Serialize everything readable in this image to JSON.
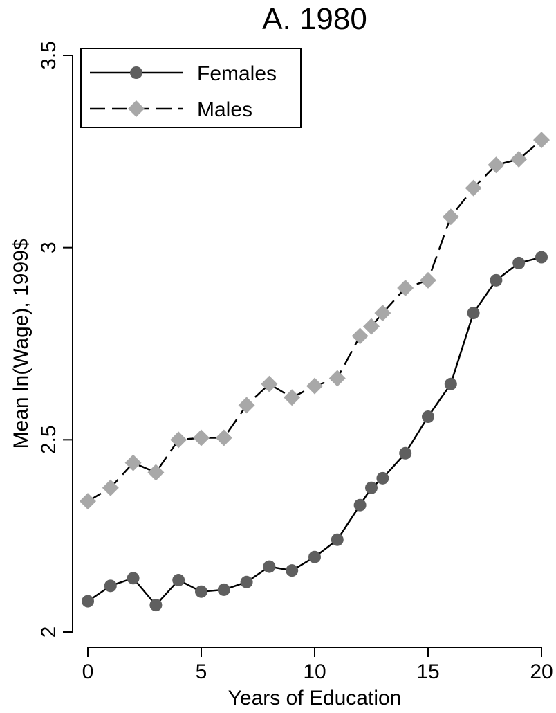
{
  "chart_data": {
    "type": "line",
    "title": "A. 1980",
    "xlabel": "Years of Education",
    "ylabel": "Mean ln(Wage), 1999$",
    "xlim": [
      0,
      20
    ],
    "ylim": [
      2,
      3.5
    ],
    "xticks": [
      0,
      5,
      10,
      15,
      20
    ],
    "xtick_labels": [
      "0",
      "5",
      "10",
      "15",
      "20"
    ],
    "yticks": [
      2,
      2.5,
      3,
      3.5
    ],
    "ytick_labels": [
      "2",
      "2.5",
      "3",
      "3.5"
    ],
    "grid": false,
    "legend_position": "top-left",
    "series": [
      {
        "name": "Females",
        "color": "#5f5f5f",
        "marker": "circle",
        "line_style": "solid",
        "x": [
          0,
          1,
          2,
          3,
          4,
          5,
          6,
          7,
          8,
          9,
          10,
          11,
          12,
          12.5,
          13,
          14,
          15,
          16,
          17,
          18,
          19,
          20
        ],
        "y": [
          2.08,
          2.12,
          2.14,
          2.07,
          2.135,
          2.105,
          2.11,
          2.13,
          2.17,
          2.16,
          2.195,
          2.24,
          2.33,
          2.375,
          2.4,
          2.465,
          2.56,
          2.645,
          2.83,
          2.915,
          2.96,
          2.975
        ]
      },
      {
        "name": "Males",
        "color": "#a8a8a8",
        "marker": "diamond",
        "line_style": "dashed",
        "x": [
          0,
          1,
          2,
          3,
          4,
          5,
          6,
          7,
          8,
          9,
          10,
          11,
          12,
          12.5,
          13,
          14,
          15,
          16,
          17,
          18,
          19,
          20
        ],
        "y": [
          2.34,
          2.375,
          2.44,
          2.415,
          2.5,
          2.505,
          2.505,
          2.59,
          2.645,
          2.61,
          2.64,
          2.66,
          2.77,
          2.795,
          2.83,
          2.895,
          2.915,
          3.08,
          3.155,
          3.215,
          3.23,
          3.28
        ]
      }
    ]
  }
}
